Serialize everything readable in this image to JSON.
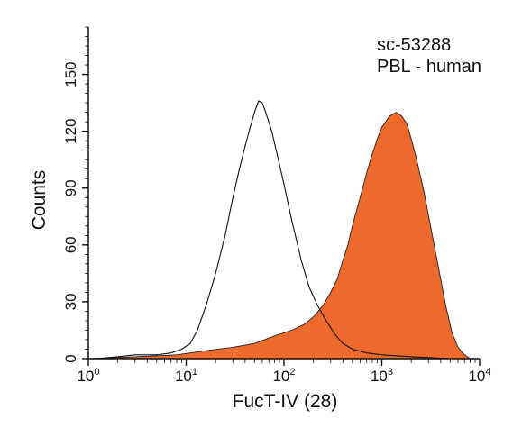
{
  "chart_data": {
    "type": "area",
    "xscale": "log",
    "xlim": [
      1,
      10000
    ],
    "ylim": [
      0,
      175
    ],
    "xlabel": "FucT-IV (28)",
    "ylabel": "Counts",
    "grid": false,
    "annotations": [
      "sc-53288",
      "PBL - human"
    ],
    "x_ticks": [
      {
        "base": "10",
        "exp": "0"
      },
      {
        "base": "10",
        "exp": "1"
      },
      {
        "base": "10",
        "exp": "2"
      },
      {
        "base": "10",
        "exp": "3"
      },
      {
        "base": "10",
        "exp": "4"
      }
    ],
    "y_ticks": [
      "0",
      "30",
      "60",
      "90",
      "120",
      "150"
    ],
    "y_tick_values": [
      0,
      30,
      60,
      90,
      120,
      150
    ],
    "series": [
      {
        "style": "outline",
        "color": "#111111",
        "points": [
          [
            1.2,
            0
          ],
          [
            2,
            1
          ],
          [
            3,
            2
          ],
          [
            5,
            2
          ],
          [
            7,
            3
          ],
          [
            9,
            5
          ],
          [
            11,
            8
          ],
          [
            13,
            15
          ],
          [
            16,
            28
          ],
          [
            20,
            45
          ],
          [
            25,
            65
          ],
          [
            30,
            85
          ],
          [
            35,
            100
          ],
          [
            40,
            112
          ],
          [
            45,
            122
          ],
          [
            50,
            130
          ],
          [
            55,
            136
          ],
          [
            60,
            135
          ],
          [
            65,
            130
          ],
          [
            75,
            120
          ],
          [
            85,
            108
          ],
          [
            100,
            92
          ],
          [
            120,
            73
          ],
          [
            150,
            52
          ],
          [
            180,
            38
          ],
          [
            220,
            28
          ],
          [
            270,
            20
          ],
          [
            330,
            13
          ],
          [
            400,
            8
          ],
          [
            500,
            5
          ],
          [
            700,
            3
          ],
          [
            1000,
            2
          ],
          [
            2000,
            1
          ],
          [
            5000,
            0
          ],
          [
            10000,
            0
          ]
        ]
      },
      {
        "style": "filled",
        "color": "#ED6A2C",
        "points": [
          [
            1,
            0
          ],
          [
            3,
            1
          ],
          [
            8,
            2
          ],
          [
            15,
            4
          ],
          [
            30,
            6
          ],
          [
            50,
            8
          ],
          [
            80,
            12
          ],
          [
            120,
            15
          ],
          [
            160,
            18
          ],
          [
            200,
            22
          ],
          [
            250,
            28
          ],
          [
            300,
            35
          ],
          [
            350,
            42
          ],
          [
            400,
            52
          ],
          [
            450,
            60
          ],
          [
            500,
            70
          ],
          [
            600,
            85
          ],
          [
            700,
            98
          ],
          [
            800,
            108
          ],
          [
            900,
            116
          ],
          [
            1000,
            122
          ],
          [
            1200,
            128
          ],
          [
            1400,
            130
          ],
          [
            1600,
            128
          ],
          [
            1800,
            124
          ],
          [
            2000,
            116
          ],
          [
            2300,
            104
          ],
          [
            2700,
            88
          ],
          [
            3200,
            68
          ],
          [
            3800,
            48
          ],
          [
            4500,
            28
          ],
          [
            5200,
            14
          ],
          [
            6000,
            6
          ],
          [
            7000,
            2
          ],
          [
            8000,
            0
          ],
          [
            10000,
            0
          ]
        ]
      }
    ]
  }
}
